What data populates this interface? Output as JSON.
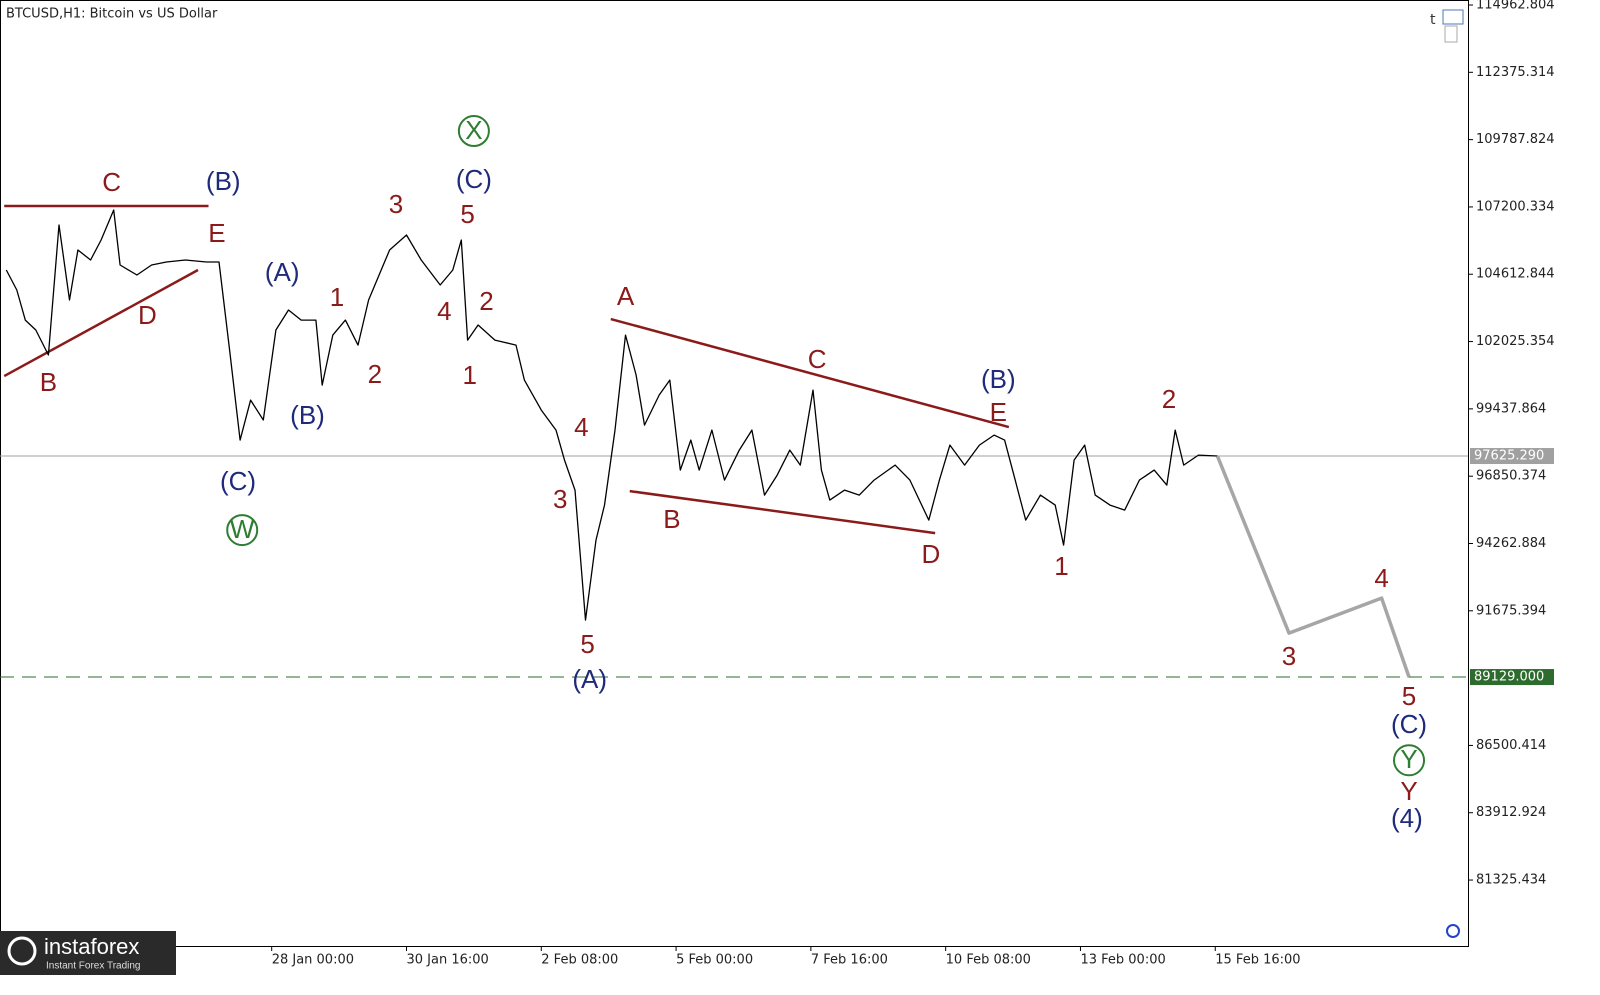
{
  "chart_data": {
    "type": "line",
    "title": "BTCUSD,H1:  Bitcoin vs US Dollar",
    "xlim": [
      "22 Jan 15:00",
      "20 Feb 16:00"
    ],
    "xticks": [
      "28 Jan 00:00",
      "30 Jan 16:00",
      "2 Feb 08:00",
      "5 Feb 00:00",
      "7 Feb 16:00",
      "10 Feb 08:00",
      "13 Feb 00:00",
      "15 Feb 16:00"
    ],
    "ylim": [
      78790,
      115155
    ],
    "yticks": [
      114962.804,
      112375.314,
      109787.824,
      107200.334,
      104612.844,
      102025.354,
      99437.864,
      96850.374,
      94262.884,
      91675.394,
      86500.414,
      83912.924,
      81325.434
    ],
    "series": [
      {
        "color": "#000000",
        "x": [
          "22 Jan 18:00",
          "22 Jan 23:00",
          "23 Jan 03:00",
          "23 Jan 08:00",
          "23 Jan 14:00",
          "23 Jan 19:00",
          "24 Jan 00:00",
          "24 Jan 04:00",
          "24 Jan 10:00",
          "24 Jan 15:00",
          "24 Jan 21:00",
          "25 Jan 00:00",
          "25 Jan 08:00",
          "25 Jan 15:00",
          "25 Jan 22:00",
          "26 Jan 07:00",
          "26 Jan 17:00",
          "26 Jan 23:00",
          "27 Jan 04:00",
          "27 Jan 09:00",
          "27 Jan 14:00",
          "27 Jan 20:00",
          "28 Jan 02:00",
          "28 Jan 08:00",
          "28 Jan 14:00",
          "28 Jan 21:00",
          "29 Jan 00:00",
          "29 Jan 05:00",
          "29 Jan 11:00",
          "29 Jan 17:00",
          "29 Jan 22:00",
          "30 Jan 03:00",
          "30 Jan 08:00",
          "30 Jan 16:00",
          "30 Jan 23:00",
          "31 Jan 08:00",
          "31 Jan 14:00",
          "31 Jan 18:00",
          "31 Jan 21:00",
          "1 Feb 02:00",
          "1 Feb 10:00",
          "1 Feb 20:00",
          "2 Feb 00:00",
          "2 Feb 08:00",
          "2 Feb 15:00",
          "2 Feb 19:00",
          "3 Feb 00:00",
          "3 Feb 05:00",
          "3 Feb 10:00",
          "3 Feb 14:00",
          "3 Feb 19:00",
          "4 Feb 00:00",
          "4 Feb 05:00",
          "4 Feb 09:00",
          "4 Feb 16:00",
          "4 Feb 21:00",
          "5 Feb 02:00",
          "5 Feb 07:00",
          "5 Feb 11:00",
          "5 Feb 17:00",
          "5 Feb 23:00",
          "6 Feb 06:00",
          "6 Feb 12:00",
          "6 Feb 18:00",
          "7 Feb 00:00",
          "7 Feb 06:00",
          "7 Feb 11:00",
          "7 Feb 17:00",
          "7 Feb 21:00",
          "8 Feb 01:00",
          "8 Feb 08:00",
          "8 Feb 15:00",
          "8 Feb 22:00",
          "9 Feb 08:00",
          "9 Feb 15:00",
          "10 Feb 00:00",
          "10 Feb 05:00",
          "10 Feb 10:00",
          "10 Feb 17:00",
          "11 Feb 00:00",
          "11 Feb 07:00",
          "11 Feb 12:00",
          "11 Feb 17:00",
          "11 Feb 22:00",
          "12 Feb 05:00",
          "12 Feb 12:00",
          "12 Feb 16:00",
          "12 Feb 21:00",
          "13 Feb 02:00",
          "13 Feb 07:00",
          "13 Feb 14:00",
          "13 Feb 21:00",
          "14 Feb 04:00",
          "14 Feb 11:00",
          "14 Feb 17:00",
          "14 Feb 21:00",
          "15 Feb 01:00",
          "15 Feb 08:00",
          "15 Feb 17:00"
        ],
        "values": [
          104775,
          104006,
          102852,
          102468,
          101507,
          106505,
          103621,
          105543,
          105159,
          105928,
          107081,
          104967,
          104582,
          104967,
          105082,
          105159,
          105082,
          105082,
          101699,
          98239,
          99776,
          99008,
          102468,
          103237,
          102852,
          102852,
          100353,
          102275,
          102852,
          101891,
          103621,
          104582,
          105543,
          106120,
          105159,
          104198,
          104775,
          105928,
          102083,
          102660,
          102083,
          101891,
          100545,
          99392,
          98623,
          97470,
          96317,
          91318,
          94394,
          95739,
          98623,
          102275,
          100738,
          98815,
          99969,
          100545,
          97085,
          98239,
          97085,
          98623,
          96701,
          97854,
          98623,
          96124,
          96893,
          97854,
          97277,
          100161,
          97085,
          95932,
          96317,
          96124,
          96701,
          97277,
          96701,
          95163,
          96701,
          98046,
          97277,
          98046,
          98431,
          98239,
          96701,
          95163,
          96124,
          95739,
          94202,
          97470,
          98046,
          96124,
          95739,
          95547,
          96701,
          97085,
          96508,
          98623,
          97277,
          97662,
          97625
        ]
      },
      {
        "color": "#a6a6a6",
        "x": [
          "15 Feb 17:00",
          "17 Feb 03:00",
          "18 Feb 23:00",
          "19 Feb 12:00"
        ],
        "values": [
          97625,
          90818,
          92164,
          89129
        ]
      }
    ],
    "levels": [
      {
        "value": 97625.29,
        "label": "97625.290",
        "color": "#a0a0a0",
        "style": "solid"
      },
      {
        "value": 89129,
        "label": "89129.000",
        "color": "#2e6b2e",
        "style": "dashed"
      }
    ],
    "trend_lines": [
      {
        "color": "#8b1a1a",
        "x": [
          "22 Jan 17:00",
          "26 Jan 18:00"
        ],
        "values": [
          107235,
          107235
        ]
      },
      {
        "color": "#8b1a1a",
        "x": [
          "22 Jan 17:00",
          "26 Jan 13:00"
        ],
        "values": [
          100699,
          104775
        ]
      },
      {
        "color": "#8b1a1a",
        "x": [
          "3 Feb 17:00",
          "11 Feb 14:00"
        ],
        "values": [
          102891,
          98738
        ]
      },
      {
        "color": "#8b1a1a",
        "x": [
          "4 Feb 02:00",
          "10 Feb 03:00"
        ],
        "values": [
          96277,
          94663
        ]
      }
    ],
    "annotations": [
      {
        "text": "C",
        "x": "24 Jan 20:00",
        "y": 108119,
        "color": "#8b1a1a"
      },
      {
        "text": "(B)",
        "x": "27 Jan 01:00",
        "y": 108158,
        "color": "#1f2a7a"
      },
      {
        "text": "E",
        "x": "26 Jan 22:00",
        "y": 106159,
        "color": "#8b1a1a"
      },
      {
        "text": "D",
        "x": "25 Jan 13:00",
        "y": 103006,
        "color": "#8b1a1a"
      },
      {
        "text": "B",
        "x": "23 Jan 14:00",
        "y": 100430,
        "color": "#8b1a1a"
      },
      {
        "text": "(A)",
        "x": "28 Jan 05:00",
        "y": 104659,
        "color": "#1f2a7a"
      },
      {
        "text": "(B)",
        "x": "28 Jan 17:00",
        "y": 99161,
        "color": "#1f2a7a"
      },
      {
        "text": "(C)",
        "x": "27 Jan 08:00",
        "y": 96624,
        "color": "#1f2a7a"
      },
      {
        "text": "W",
        "x": "27 Jan 10:00",
        "y": 94778,
        "color": "#2e7d32",
        "circled": true
      },
      {
        "text": "X",
        "x": "1 Feb 00:00",
        "y": 110119,
        "color": "#2e7d32",
        "circled": true
      },
      {
        "text": "(C)",
        "x": "1 Feb 00:00",
        "y": 108235,
        "color": "#1f2a7a"
      },
      {
        "text": "3",
        "x": "30 Jan 11:00",
        "y": 107274,
        "color": "#8b1a1a"
      },
      {
        "text": "5",
        "x": "31 Jan 21:00",
        "y": 106889,
        "color": "#8b1a1a"
      },
      {
        "text": "1",
        "x": "29 Jan 07:00",
        "y": 103698,
        "color": "#8b1a1a"
      },
      {
        "text": "2",
        "x": "30 Jan 01:00",
        "y": 100738,
        "color": "#8b1a1a"
      },
      {
        "text": "4",
        "x": "31 Jan 10:00",
        "y": 103160,
        "color": "#8b1a1a"
      },
      {
        "text": "2",
        "x": "1 Feb 06:00",
        "y": 103544,
        "color": "#8b1a1a"
      },
      {
        "text": "1",
        "x": "31 Jan 22:00",
        "y": 100699,
        "color": "#8b1a1a"
      },
      {
        "text": "4",
        "x": "3 Feb 03:00",
        "y": 98700,
        "color": "#8b1a1a"
      },
      {
        "text": "3",
        "x": "2 Feb 17:00",
        "y": 95932,
        "color": "#8b1a1a"
      },
      {
        "text": "5",
        "x": "3 Feb 06:00",
        "y": 90357,
        "color": "#8b1a1a"
      },
      {
        "text": "(A)",
        "x": "3 Feb 07:00",
        "y": 89012,
        "color": "#1f2a7a"
      },
      {
        "text": "A",
        "x": "4 Feb 00:00",
        "y": 103737,
        "color": "#8b1a1a"
      },
      {
        "text": "C",
        "x": "7 Feb 19:00",
        "y": 101315,
        "color": "#8b1a1a"
      },
      {
        "text": "(B)",
        "x": "11 Feb 09:00",
        "y": 100545,
        "color": "#1f2a7a"
      },
      {
        "text": "E",
        "x": "11 Feb 09:00",
        "y": 99277,
        "color": "#8b1a1a"
      },
      {
        "text": "B",
        "x": "4 Feb 22:00",
        "y": 95163,
        "color": "#8b1a1a"
      },
      {
        "text": "D",
        "x": "10 Feb 01:00",
        "y": 93819,
        "color": "#8b1a1a"
      },
      {
        "text": "2",
        "x": "14 Feb 18:00",
        "y": 99777,
        "color": "#8b1a1a"
      },
      {
        "text": "1",
        "x": "12 Feb 15:00",
        "y": 93356,
        "color": "#8b1a1a"
      },
      {
        "text": "3",
        "x": "17 Feb 03:00",
        "y": 89896,
        "color": "#8b1a1a"
      },
      {
        "text": "4",
        "x": "18 Feb 23:00",
        "y": 92895,
        "color": "#8b1a1a"
      },
      {
        "text": "5",
        "x": "19 Feb 12:00",
        "y": 88358,
        "color": "#8b1a1a"
      },
      {
        "text": "(C)",
        "x": "19 Feb 12:00",
        "y": 87281,
        "color": "#1f2a7a"
      },
      {
        "text": "Y",
        "x": "19 Feb 12:00",
        "y": 85928,
        "color": "#2e7d32",
        "circled": true
      },
      {
        "text": "Y",
        "x": "19 Feb 12:00",
        "y": 84705,
        "color": "#8b1a1a"
      },
      {
        "text": "(4)",
        "x": "19 Feb 11:00",
        "y": 83667,
        "color": "#1f2a7a"
      }
    ]
  },
  "watermark": {
    "brand": "instaforex",
    "tagline": "Instant Forex Trading"
  }
}
